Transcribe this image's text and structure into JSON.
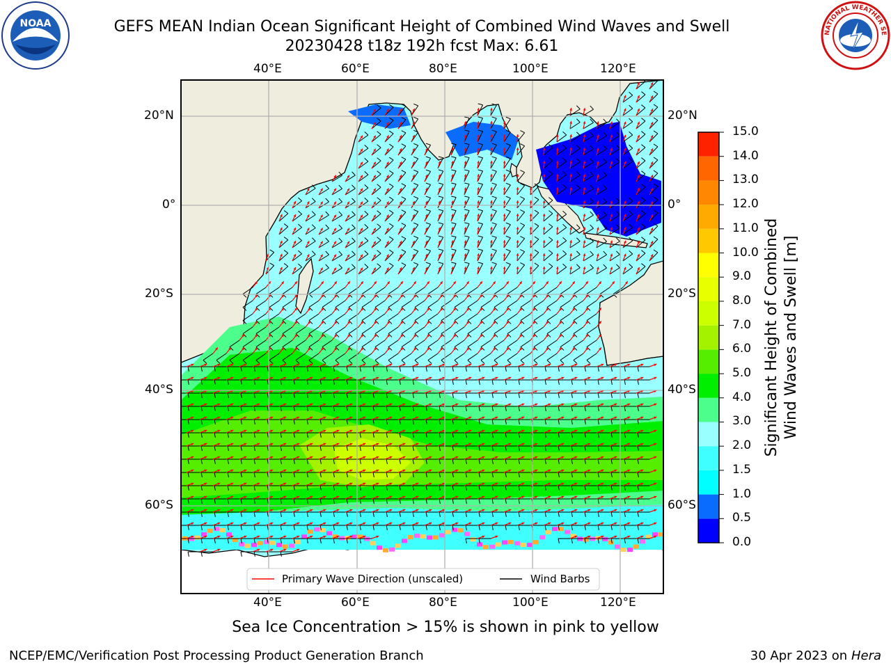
{
  "title": {
    "line1": "GEFS MEAN Indian Ocean Significant Height of Combined Wind Waves and Swell",
    "line2": "20230428 t18z 192h fcst   Max: 6.61"
  },
  "map": {
    "top_lon_labels": [
      "40°E",
      "60°E",
      "80°E",
      "100°E",
      "120°E"
    ],
    "bottom_lon_labels": [
      "40°E",
      "60°E",
      "80°E",
      "100°E",
      "120°E"
    ],
    "left_lat_labels": [
      "20°N",
      "0°",
      "20°S",
      "40°S",
      "60°S"
    ],
    "right_lat_labels": [
      "20°N",
      "0°",
      "20°S",
      "40°S",
      "60°S"
    ],
    "legend": {
      "primary_wave_direction": "Primary Wave Direction (unscaled)",
      "wind_barbs": "Wind Barbs"
    },
    "colors": {
      "land": "#efedde",
      "ice": "#ffffff",
      "wave_arrow": "#ff0000",
      "wind_barb": "#000000"
    }
  },
  "colorbar": {
    "label_line1": "Significant Height of Combined",
    "label_line2": "Wind Waves and Swell [m]",
    "ticks": [
      "0.0",
      "0.5",
      "1.0",
      "1.5",
      "2.0",
      "3.0",
      "4.0",
      "5.0",
      "6.0",
      "7.0",
      "8.0",
      "9.0",
      "10.0",
      "11.0",
      "12.0",
      "13.0",
      "14.0",
      "15.0"
    ],
    "colors": [
      "#0000ff",
      "#0a6cff",
      "#00ffff",
      "#3fffff",
      "#99ffff",
      "#4cff8c",
      "#00ee00",
      "#55ee00",
      "#a5f200",
      "#ccff00",
      "#e8ff00",
      "#ffff00",
      "#ffc800",
      "#ffaa00",
      "#ff8800",
      "#ff6600",
      "#ff2200"
    ]
  },
  "logos": {
    "noaa_text": "NOAA",
    "nws_text": "NATIONAL WEATHER SERVICE"
  },
  "footer": {
    "note": "Sea Ice Concentration > 15% is shown in pink to yellow",
    "left": "NCEP/EMC/Verification Post Processing Product Generation Branch",
    "date": "30 Apr 2023 on",
    "host": "Hera"
  }
}
